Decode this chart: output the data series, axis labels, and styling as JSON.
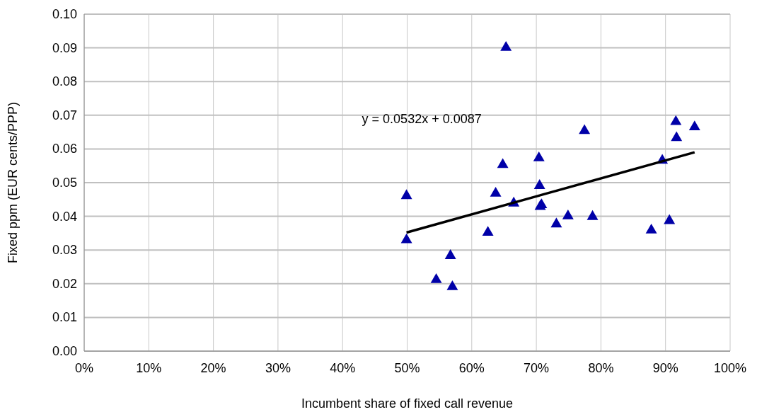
{
  "chart_data": {
    "type": "scatter",
    "xlabel": "Incumbent share of fixed call revenue",
    "ylabel": "Fixed ppm (EUR cents/PPP)",
    "annotations": [
      "y = 0.0532x + 0.0087"
    ],
    "xlim": [
      0,
      1
    ],
    "ylim": [
      0,
      0.1
    ],
    "xticks": [
      {
        "value": 0,
        "label": "0%"
      },
      {
        "value": 0.1,
        "label": "10%"
      },
      {
        "value": 0.2,
        "label": "20%"
      },
      {
        "value": 0.3,
        "label": "30%"
      },
      {
        "value": 0.4,
        "label": "40%"
      },
      {
        "value": 0.5,
        "label": "50%"
      },
      {
        "value": 0.6,
        "label": "60%"
      },
      {
        "value": 0.7,
        "label": "70%"
      },
      {
        "value": 0.8,
        "label": "80%"
      },
      {
        "value": 0.9,
        "label": "90%"
      },
      {
        "value": 1,
        "label": "100%"
      }
    ],
    "yticks": [
      {
        "value": 0,
        "label": "0.00"
      },
      0.01,
      0.02,
      0.03,
      0.04,
      0.05,
      0.06,
      0.07,
      0.08,
      0.09,
      {
        "value": 0.1,
        "label": "0.10"
      }
    ],
    "grid": true,
    "series": [
      {
        "marker": "triangle",
        "color": "#0000a8",
        "x": [
          0.653,
          0.7745,
          0.916,
          0.945,
          0.917,
          0.704,
          0.648,
          0.895,
          0.705,
          0.499,
          0.637,
          0.665,
          0.708,
          0.706,
          0.749,
          0.787,
          0.731,
          0.906,
          0.878,
          0.625,
          0.499,
          0.567,
          0.545,
          0.57
        ],
        "values": [
          0.0901,
          0.0654,
          0.0681,
          0.0665,
          0.0633,
          0.0573,
          0.0553,
          0.0566,
          0.0491,
          0.0461,
          0.0468,
          0.0439,
          0.0434,
          0.0429,
          0.0401,
          0.0399,
          0.0377,
          0.0387,
          0.0359,
          0.0352,
          0.033,
          0.0283,
          0.0212,
          0.0191
        ]
      },
      {
        "type": "line",
        "marker": "none",
        "color": "#000000",
        "x": [
          0.499,
          0.945
        ],
        "values": [
          0.0352,
          0.059
        ]
      }
    ]
  }
}
